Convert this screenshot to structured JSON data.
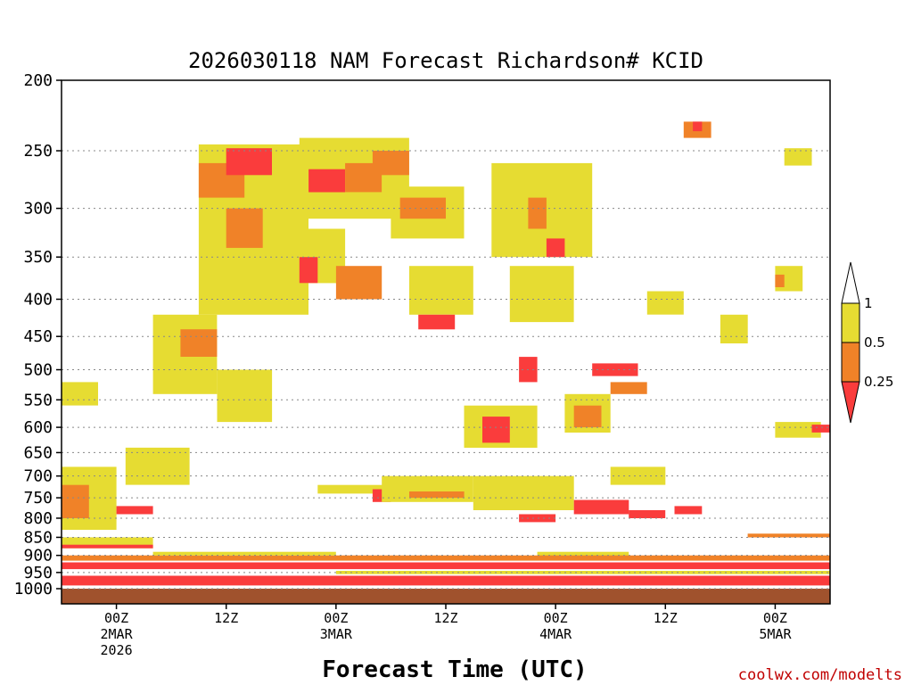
{
  "chart_data": {
    "type": "heatmap",
    "title": "2026030118 NAM Forecast Richardson# KCID",
    "xlabel": "Forecast Time (UTC)",
    "ylabel": "",
    "credit": "coolwx.com/modelts",
    "y_axis": {
      "scale": "log-pressure",
      "range_hpa": [
        1000,
        200
      ],
      "ticks": [
        "200",
        "250",
        "300",
        "350",
        "400",
        "450",
        "500",
        "550",
        "600",
        "650",
        "700",
        "750",
        "800",
        "850",
        "900",
        "950",
        "1000"
      ]
    },
    "x_axis": {
      "range_hours": [
        0,
        84
      ],
      "ticks": [
        {
          "hour": 6,
          "lines": [
            "00Z",
            "2MAR",
            "2026"
          ]
        },
        {
          "hour": 18,
          "lines": [
            "12Z"
          ]
        },
        {
          "hour": 30,
          "lines": [
            "00Z",
            "3MAR"
          ]
        },
        {
          "hour": 42,
          "lines": [
            "12Z"
          ]
        },
        {
          "hour": 54,
          "lines": [
            "00Z",
            "4MAR"
          ]
        },
        {
          "hour": 66,
          "lines": [
            "12Z"
          ]
        },
        {
          "hour": 78,
          "lines": [
            "00Z",
            "5MAR"
          ]
        }
      ]
    },
    "legend": {
      "placement": "right",
      "labels": [
        "1",
        "0.5",
        "0.25"
      ],
      "bins": [
        {
          "range": "0.5-1",
          "color": "#e6dc32"
        },
        {
          "range": "0.25-0.5",
          "color": "#f08228"
        },
        {
          "range": "<0.25",
          "color": "#fa3c3c"
        }
      ]
    },
    "colors": {
      "low": "#fa3c3c",
      "mid": "#f08228",
      "high": "#e6dc32",
      "ground": "#a0522d"
    },
    "regions": [
      {
        "bin": "high",
        "hours": [
          0,
          4
        ],
        "hpa": [
          520,
          560
        ]
      },
      {
        "bin": "high",
        "hours": [
          0,
          6
        ],
        "hpa": [
          680,
          830
        ]
      },
      {
        "bin": "mid",
        "hours": [
          0,
          3
        ],
        "hpa": [
          720,
          800
        ]
      },
      {
        "bin": "low",
        "hours": [
          6,
          10
        ],
        "hpa": [
          770,
          790
        ]
      },
      {
        "bin": "high",
        "hours": [
          7,
          14
        ],
        "hpa": [
          640,
          720
        ]
      },
      {
        "bin": "high",
        "hours": [
          10,
          17
        ],
        "hpa": [
          420,
          540
        ]
      },
      {
        "bin": "mid",
        "hours": [
          13,
          17
        ],
        "hpa": [
          440,
          480
        ]
      },
      {
        "bin": "high",
        "hours": [
          15,
          27
        ],
        "hpa": [
          245,
          420
        ]
      },
      {
        "bin": "mid",
        "hours": [
          15,
          20
        ],
        "hpa": [
          260,
          290
        ]
      },
      {
        "bin": "low",
        "hours": [
          18,
          23
        ],
        "hpa": [
          248,
          270
        ]
      },
      {
        "bin": "mid",
        "hours": [
          18,
          22
        ],
        "hpa": [
          300,
          340
        ]
      },
      {
        "bin": "high",
        "hours": [
          17,
          23
        ],
        "hpa": [
          500,
          590
        ]
      },
      {
        "bin": "high",
        "hours": [
          26,
          38
        ],
        "hpa": [
          240,
          310
        ]
      },
      {
        "bin": "low",
        "hours": [
          27,
          31
        ],
        "hpa": [
          265,
          285
        ]
      },
      {
        "bin": "mid",
        "hours": [
          31,
          35
        ],
        "hpa": [
          260,
          285
        ]
      },
      {
        "bin": "mid",
        "hours": [
          34,
          38
        ],
        "hpa": [
          250,
          270
        ]
      },
      {
        "bin": "high",
        "hours": [
          25,
          31
        ],
        "hpa": [
          320,
          380
        ]
      },
      {
        "bin": "low",
        "hours": [
          26,
          28
        ],
        "hpa": [
          350,
          380
        ]
      },
      {
        "bin": "mid",
        "hours": [
          30,
          35
        ],
        "hpa": [
          360,
          400
        ]
      },
      {
        "bin": "high",
        "hours": [
          36,
          44
        ],
        "hpa": [
          280,
          330
        ]
      },
      {
        "bin": "mid",
        "hours": [
          37,
          42
        ],
        "hpa": [
          290,
          310
        ]
      },
      {
        "bin": "high",
        "hours": [
          38,
          45
        ],
        "hpa": [
          360,
          420
        ]
      },
      {
        "bin": "low",
        "hours": [
          39,
          43
        ],
        "hpa": [
          420,
          440
        ]
      },
      {
        "bin": "high",
        "hours": [
          47,
          58
        ],
        "hpa": [
          260,
          350
        ]
      },
      {
        "bin": "mid",
        "hours": [
          51,
          53
        ],
        "hpa": [
          290,
          320
        ]
      },
      {
        "bin": "low",
        "hours": [
          53,
          55
        ],
        "hpa": [
          330,
          350
        ]
      },
      {
        "bin": "high",
        "hours": [
          49,
          56
        ],
        "hpa": [
          360,
          430
        ]
      },
      {
        "bin": "low",
        "hours": [
          50,
          52
        ],
        "hpa": [
          480,
          520
        ]
      },
      {
        "bin": "high",
        "hours": [
          44,
          52
        ],
        "hpa": [
          560,
          640
        ]
      },
      {
        "bin": "low",
        "hours": [
          46,
          49
        ],
        "hpa": [
          580,
          630
        ]
      },
      {
        "bin": "high",
        "hours": [
          55,
          60
        ],
        "hpa": [
          540,
          610
        ]
      },
      {
        "bin": "mid",
        "hours": [
          56,
          59
        ],
        "hpa": [
          560,
          600
        ]
      },
      {
        "bin": "low",
        "hours": [
          58,
          63
        ],
        "hpa": [
          490,
          510
        ]
      },
      {
        "bin": "mid",
        "hours": [
          60,
          64
        ],
        "hpa": [
          520,
          540
        ]
      },
      {
        "bin": "high",
        "hours": [
          64,
          68
        ],
        "hpa": [
          390,
          420
        ]
      },
      {
        "bin": "high",
        "hours": [
          72,
          75
        ],
        "hpa": [
          420,
          460
        ]
      },
      {
        "bin": "high",
        "hours": [
          78,
          81
        ],
        "hpa": [
          360,
          390
        ]
      },
      {
        "bin": "mid",
        "hours": [
          78,
          79
        ],
        "hpa": [
          370,
          385
        ]
      },
      {
        "bin": "high",
        "hours": [
          78,
          83
        ],
        "hpa": [
          590,
          620
        ]
      },
      {
        "bin": "low",
        "hours": [
          82,
          84
        ],
        "hpa": [
          595,
          610
        ]
      },
      {
        "bin": "high",
        "hours": [
          79,
          82
        ],
        "hpa": [
          248,
          262
        ]
      },
      {
        "bin": "mid",
        "hours": [
          68,
          71
        ],
        "hpa": [
          228,
          240
        ]
      },
      {
        "bin": "low",
        "hours": [
          69,
          70
        ],
        "hpa": [
          228,
          235
        ]
      },
      {
        "bin": "high",
        "hours": [
          28,
          37
        ],
        "hpa": [
          720,
          740
        ]
      },
      {
        "bin": "low",
        "hours": [
          34,
          36
        ],
        "hpa": [
          730,
          760
        ]
      },
      {
        "bin": "high",
        "hours": [
          35,
          45
        ],
        "hpa": [
          700,
          760
        ]
      },
      {
        "bin": "mid",
        "hours": [
          38,
          44
        ],
        "hpa": [
          735,
          750
        ]
      },
      {
        "bin": "high",
        "hours": [
          45,
          56
        ],
        "hpa": [
          700,
          780
        ]
      },
      {
        "bin": "low",
        "hours": [
          50,
          54
        ],
        "hpa": [
          790,
          810
        ]
      },
      {
        "bin": "low",
        "hours": [
          56,
          62
        ],
        "hpa": [
          755,
          790
        ]
      },
      {
        "bin": "low",
        "hours": [
          62,
          66
        ],
        "hpa": [
          780,
          800
        ]
      },
      {
        "bin": "low",
        "hours": [
          67,
          70
        ],
        "hpa": [
          770,
          790
        ]
      },
      {
        "bin": "high",
        "hours": [
          60,
          66
        ],
        "hpa": [
          680,
          720
        ]
      },
      {
        "bin": "mid",
        "hours": [
          75,
          84
        ],
        "hpa": [
          840,
          850
        ]
      },
      {
        "bin": "high",
        "hours": [
          52,
          62
        ],
        "hpa": [
          890,
          905
        ]
      },
      {
        "bin": "high",
        "hours": [
          0,
          10
        ],
        "hpa": [
          850,
          880
        ]
      },
      {
        "bin": "low",
        "hours": [
          0,
          10
        ],
        "hpa": [
          870,
          880
        ]
      },
      {
        "bin": "mid",
        "hours": [
          0,
          84
        ],
        "hpa": [
          900,
          915
        ]
      },
      {
        "bin": "low",
        "hours": [
          0,
          84
        ],
        "hpa": [
          920,
          940
        ]
      },
      {
        "bin": "high",
        "hours": [
          10,
          30
        ],
        "hpa": [
          890,
          900
        ]
      },
      {
        "bin": "high",
        "hours": [
          30,
          84
        ],
        "hpa": [
          945,
          955
        ]
      },
      {
        "bin": "low",
        "hours": [
          0,
          84
        ],
        "hpa": [
          960,
          990
        ]
      },
      {
        "bin": "ground",
        "hours": [
          0,
          84
        ],
        "hpa": [
          1000,
          1025
        ]
      }
    ]
  }
}
